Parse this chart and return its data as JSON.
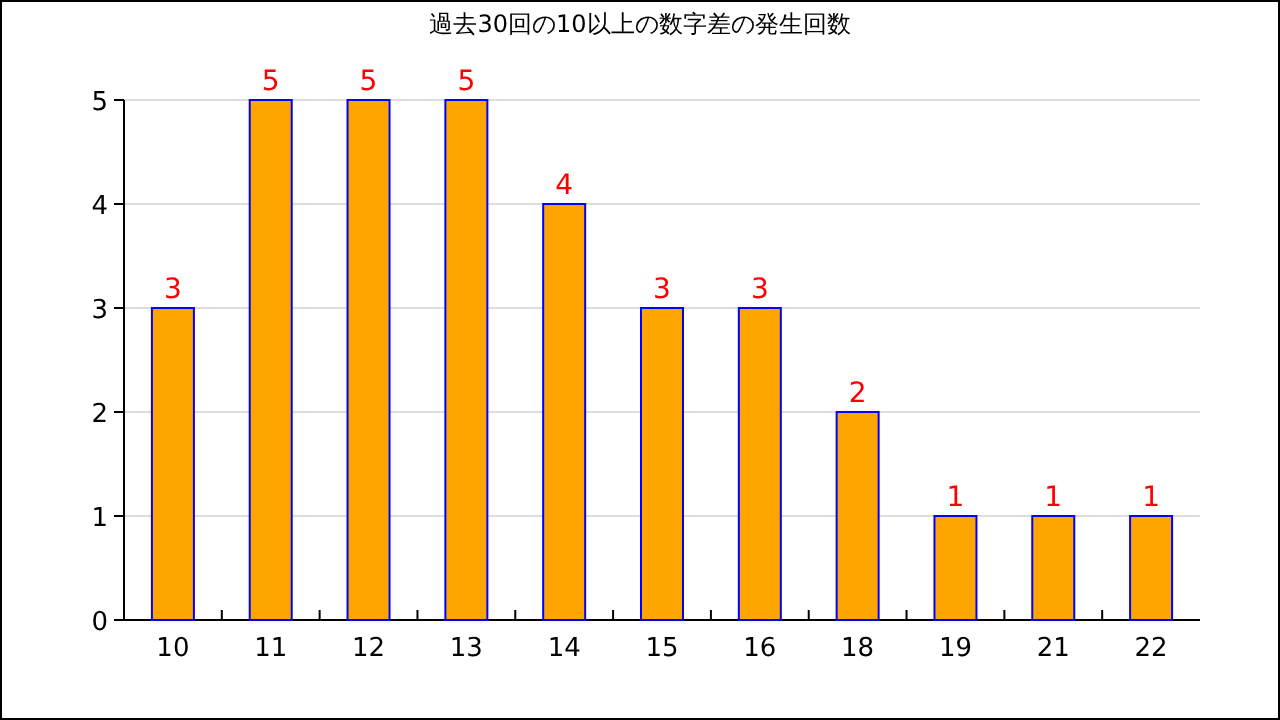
{
  "chart_data": {
    "type": "bar",
    "title": "過去30回の10以上の数字差の発生回数",
    "categories": [
      "10",
      "11",
      "12",
      "13",
      "14",
      "15",
      "16",
      "18",
      "19",
      "21",
      "22"
    ],
    "values": [
      3,
      5,
      5,
      5,
      4,
      3,
      3,
      2,
      1,
      1,
      1
    ],
    "color": "#ffa500",
    "ylim": [
      0,
      5
    ],
    "yticks": [
      0,
      1,
      2,
      3,
      4,
      5
    ],
    "grid": "y",
    "data_labels": true
  }
}
